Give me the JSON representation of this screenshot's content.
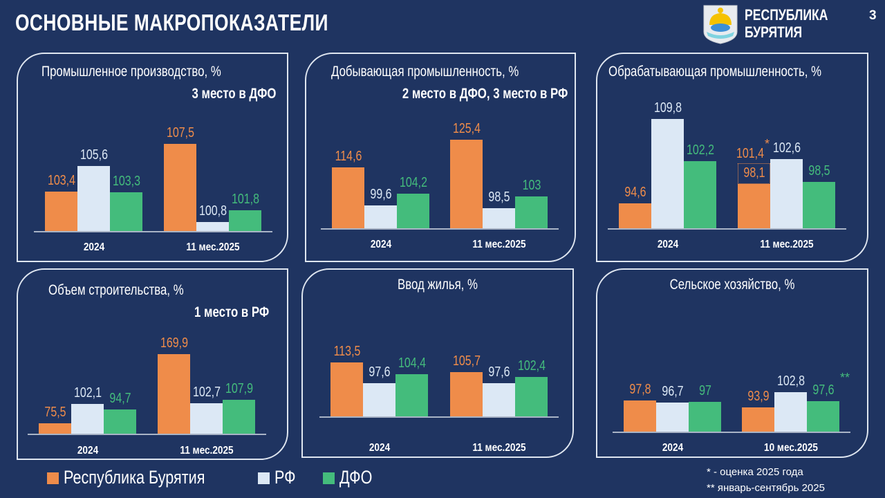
{
  "header": {
    "title": "ОСНОВНЫЕ МАКРОПОКАЗАТЕЛИ",
    "brand_line1": "РЕСПУБЛИКА",
    "brand_line2": "БУРЯТИЯ",
    "page_number": "3",
    "logo_icon": "buryatia-coat-of-arms"
  },
  "colors": {
    "background": "#1f3461",
    "buryatia": "#ef8c4a",
    "rf": "#dce8f5",
    "dfo": "#44bc7c"
  },
  "legend": [
    {
      "label": "Республика Бурятия",
      "color": "#ef8c4a"
    },
    {
      "label": "РФ",
      "color": "#dce8f5"
    },
    {
      "label": "ДФО",
      "color": "#44bc7c"
    }
  ],
  "footnotes": [
    "* - оценка 2025 года",
    "** январь-сентябрь 2025"
  ],
  "chart_data": [
    {
      "type": "bar",
      "title": "Промышленное производство, %",
      "subtitle": "3 место в ДФО",
      "categories": [
        "2024",
        "11 мес.2025"
      ],
      "ylim": [
        100,
        109.5
      ],
      "series": [
        {
          "name": "Республика Бурятия",
          "values": [
            103.4,
            107.5
          ],
          "labels": [
            "103,4",
            "107,5"
          ]
        },
        {
          "name": "РФ",
          "values": [
            105.6,
            100.8
          ],
          "labels": [
            "105,6",
            "100,8"
          ]
        },
        {
          "name": "ДФО",
          "values": [
            103.3,
            101.8
          ],
          "labels": [
            "103,3",
            "101,8"
          ]
        }
      ]
    },
    {
      "type": "bar",
      "title": "Добывающая промышленность, %",
      "subtitle": "2 место в ДФО, 3 место в РФ",
      "categories": [
        "2024",
        "11 мес.2025"
      ],
      "ylim": [
        90.6,
        134
      ],
      "series": [
        {
          "name": "Республика Бурятия",
          "values": [
            114.6,
            125.4
          ],
          "labels": [
            "114,6",
            "125,4"
          ]
        },
        {
          "name": "РФ",
          "values": [
            99.6,
            98.5
          ],
          "labels": [
            "99,6",
            "98,5"
          ]
        },
        {
          "name": "ДФО",
          "values": [
            104.2,
            103
          ],
          "labels": [
            "104,2",
            "103"
          ]
        }
      ]
    },
    {
      "type": "bar",
      "title": "Обрабатывающая промышленность, %",
      "subtitle": "",
      "categories": [
        "2024",
        "11 мес.2025"
      ],
      "ylim": [
        90.2,
        110
      ],
      "series": [
        {
          "name": "Республика Бурятия",
          "values": [
            94.6,
            98.1
          ],
          "labels": [
            "94,6",
            "98,1"
          ]
        },
        {
          "name": "РФ",
          "values": [
            109.8,
            102.6
          ],
          "labels": [
            "109,8",
            "102,6"
          ]
        },
        {
          "name": "ДФО",
          "values": [
            102.2,
            98.5
          ],
          "labels": [
            "102,2",
            "98,5"
          ]
        }
      ],
      "annotation": {
        "text": "101,4",
        "mark": "*"
      }
    },
    {
      "type": "bar",
      "title": "Объем строительства, %",
      "subtitle": "1 место в РФ",
      "categories": [
        "2024",
        "11 мес.2025"
      ],
      "ylim": [
        61.5,
        212
      ],
      "series": [
        {
          "name": "Республика Бурятия",
          "values": [
            75.5,
            169.9
          ],
          "labels": [
            "75,5",
            "169,9"
          ]
        },
        {
          "name": "РФ",
          "values": [
            102.1,
            102.7
          ],
          "labels": [
            "102,1",
            "102,7"
          ]
        },
        {
          "name": "ДФО",
          "values": [
            94.7,
            107.9
          ],
          "labels": [
            "94,7",
            "107,9"
          ]
        }
      ]
    },
    {
      "type": "bar",
      "title": "Ввод жилья, %",
      "subtitle": "",
      "categories": [
        "2024",
        "11 мес.2025"
      ],
      "ylim": [
        72,
        156.6
      ],
      "series": [
        {
          "name": "Республика Бурятия",
          "values": [
            113.5,
            105.7
          ],
          "labels": [
            "113,5",
            "105,7"
          ]
        },
        {
          "name": "РФ",
          "values": [
            97.6,
            97.6
          ],
          "labels": [
            "97,6",
            "97,6"
          ]
        },
        {
          "name": "ДФО",
          "values": [
            104.4,
            102.4
          ],
          "labels": [
            "104,4",
            "102,4"
          ]
        }
      ]
    },
    {
      "type": "bar",
      "title": "Сельское хозяйство, %",
      "subtitle": "",
      "categories": [
        "2024",
        "10 мес.2025"
      ],
      "ylim": [
        79.7,
        144.5
      ],
      "series": [
        {
          "name": "Республика Бурятия",
          "values": [
            97.8,
            93.9
          ],
          "labels": [
            "97,8",
            "93,9"
          ]
        },
        {
          "name": "РФ",
          "values": [
            96.7,
            102.8
          ],
          "labels": [
            "96,7",
            "102,8"
          ]
        },
        {
          "name": "ДФО",
          "values": [
            97,
            97.6
          ],
          "labels": [
            "97",
            "97,6"
          ]
        }
      ],
      "annotation": {
        "text": "",
        "mark": "**"
      }
    }
  ]
}
